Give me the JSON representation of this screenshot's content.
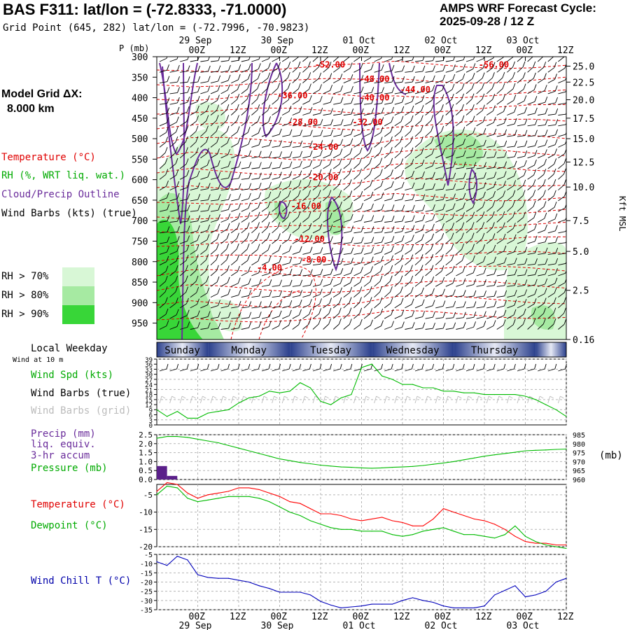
{
  "header": {
    "title": "BAS F311:  lat/lon = (-72.8333, -71.0000)",
    "subtitle": "Grid Point (645, 282) lat/lon = (-72.7996, -70.9823)",
    "cycle_line1": "AMPS WRF Forecast Cycle:",
    "cycle_line2": "2025-09-28 / 12  Z"
  },
  "grid": {
    "line1": "Model Grid ΔX:",
    "line2": "8.000 km"
  },
  "legend": {
    "temperature": "Temperature (°C)",
    "rh": "RH (%, WRT liq. wat.)",
    "cloud": "Cloud/Precip Outline",
    "barbs": "Wind Barbs (kts) (true)",
    "rh_levels": [
      {
        "label": "RH > 70%",
        "color": "#d8f7d6"
      },
      {
        "label": "RH > 80%",
        "color": "#a6eaa2"
      },
      {
        "label": "RH > 90%",
        "color": "#38d638"
      }
    ]
  },
  "colors": {
    "temperature": "#ff0000",
    "rh": "#00bb00",
    "cloud": "#6a2c9b",
    "precip": "#5a1f8a",
    "windchill": "#0000bb",
    "dewpoint": "#00bb00",
    "wind": "#00bb00"
  },
  "time_axis": {
    "ticks": [
      "00Z",
      "12Z",
      "00Z",
      "12Z",
      "00Z",
      "12Z",
      "00Z",
      "12Z",
      "00Z",
      "12Z"
    ],
    "tick_hours": [
      12,
      24,
      36,
      48,
      60,
      72,
      84,
      96,
      108,
      120
    ],
    "dates": [
      "29 Sep",
      "30 Sep",
      "01 Oct",
      "02 Oct",
      "03 Oct"
    ],
    "date_hours": [
      12,
      36,
      60,
      84,
      108
    ]
  },
  "weekday": {
    "label": "Local Weekday",
    "days": [
      "Sunday",
      "Monday",
      "Tuesday",
      "Wednesday",
      "Thursday"
    ]
  },
  "left_labels": {
    "wind_at_10m": "Wind at 10 m",
    "wind_spd": "Wind Spd (kts)",
    "barbs_true": "Wind Barbs (true)",
    "barbs_grid": "Wind Barbs (grid)",
    "precip1": "Precip (mm)",
    "precip2": "liq. equiv.",
    "precip3": "3-hr accum",
    "pressure": "Pressure (mb)",
    "temperature": "Temperature (°C)",
    "dewpoint": "Dewpoint (°C)",
    "windchill": "Wind Chill T (°C)",
    "pressure_units": "(mb)"
  },
  "chart_data": [
    {
      "type": "contour",
      "title": "Time-height cross section",
      "ylabel": "P (mb)",
      "y2label": "Kft MSL",
      "pressure_ticks": [
        300,
        350,
        400,
        450,
        500,
        550,
        600,
        650,
        700,
        750,
        800,
        850,
        900,
        950
      ],
      "height_ticks": [
        "25.0",
        "22.5",
        "20.0",
        "17.5",
        "15.0",
        "12.5",
        "10.0",
        "7.5",
        "5.0",
        "2.5",
        "0.16"
      ],
      "height_tick_p": [
        323,
        362,
        405,
        450,
        500,
        557,
        618,
        700,
        775,
        870,
        990
      ],
      "ylim": [
        300,
        990
      ],
      "temperature_contour_labels": [
        {
          "label": "-52.00",
          "hour": 50,
          "p": 320
        },
        {
          "label": "-56.00",
          "hour": 98,
          "p": 320
        },
        {
          "label": "-48.00",
          "hour": 63,
          "p": 355
        },
        {
          "label": "-44.00",
          "hour": 75,
          "p": 380
        },
        {
          "label": "-40.00",
          "hour": 63,
          "p": 400
        },
        {
          "label": "-36.00",
          "hour": 39,
          "p": 395
        },
        {
          "label": "-32.00",
          "hour": 61,
          "p": 460
        },
        {
          "label": "-28.00",
          "hour": 42,
          "p": 460
        },
        {
          "label": "-24.00",
          "hour": 48,
          "p": 520
        },
        {
          "label": "-20.00",
          "hour": 48,
          "p": 595
        },
        {
          "label": "-16.00",
          "hour": 43,
          "p": 665
        },
        {
          "label": "-12.00",
          "hour": 44,
          "p": 745
        },
        {
          "label": "-8.00",
          "hour": 46,
          "p": 795
        },
        {
          "label": "-4.00",
          "hour": 33,
          "p": 815
        }
      ]
    },
    {
      "type": "line",
      "title": "10 m wind speed",
      "ylabel": "Wind Spd (kts)",
      "yticks": [
        0,
        3,
        6,
        9,
        12,
        15,
        18,
        21,
        24,
        27,
        30,
        33,
        36,
        39
      ],
      "ylim": [
        0,
        39
      ],
      "x_hours": [
        0,
        3,
        6,
        9,
        12,
        15,
        18,
        21,
        24,
        27,
        30,
        33,
        36,
        39,
        42,
        45,
        48,
        51,
        54,
        57,
        60,
        63,
        66,
        69,
        72,
        75,
        78,
        81,
        84,
        87,
        90,
        93,
        96,
        99,
        102,
        105,
        108,
        111,
        114,
        117,
        120
      ],
      "series": [
        {
          "name": "Wind Spd",
          "values": [
            9,
            5,
            8,
            4,
            4,
            7,
            8,
            9,
            13,
            16,
            17,
            20,
            19,
            20,
            25,
            22,
            14,
            12,
            16,
            18,
            34,
            36,
            29,
            27,
            24,
            24,
            22,
            22,
            20,
            20,
            19,
            19,
            18,
            18,
            18,
            18,
            17,
            15,
            12,
            9,
            5
          ]
        }
      ]
    },
    {
      "type": "bar+line",
      "title": "Precipitation and pressure",
      "ylabel": "Precip (mm)",
      "y2label": "Pressure (mb)",
      "yticks": [
        0.0,
        0.5,
        1.0,
        1.5,
        2.0,
        2.5
      ],
      "ylim": [
        0,
        2.5
      ],
      "y2ticks": [
        960,
        965,
        970,
        975,
        980,
        985
      ],
      "y2lim": [
        960,
        985
      ],
      "precip_hours": [
        0,
        3
      ],
      "precip_values": [
        0.75,
        0.2
      ],
      "x_hours": [
        0,
        3,
        6,
        9,
        12,
        15,
        18,
        21,
        24,
        27,
        30,
        33,
        36,
        39,
        42,
        45,
        48,
        51,
        54,
        57,
        60,
        63,
        66,
        69,
        72,
        75,
        78,
        81,
        84,
        87,
        90,
        93,
        96,
        99,
        102,
        105,
        108,
        111,
        114,
        117,
        120
      ],
      "series": [
        {
          "name": "Pressure",
          "values": [
            983,
            984,
            984,
            983.5,
            982.5,
            981.5,
            980.5,
            979,
            977.5,
            976,
            974.5,
            973,
            971.5,
            970.5,
            969.5,
            968.8,
            968,
            967.5,
            967,
            966.8,
            966.5,
            966.3,
            966.5,
            966.8,
            967,
            967.3,
            967.8,
            968.5,
            969.2,
            970,
            971,
            972,
            973,
            973.8,
            974.5,
            975.2,
            976,
            976.3,
            976.5,
            976.8,
            977
          ]
        }
      ]
    },
    {
      "type": "line",
      "title": "Temperature and dewpoint",
      "ylabel": "Temperature (°C)",
      "yticks": [
        -20,
        -15,
        -10,
        -5
      ],
      "ylim": [
        -20,
        -2
      ],
      "x_hours": [
        0,
        3,
        6,
        9,
        12,
        15,
        18,
        21,
        24,
        27,
        30,
        33,
        36,
        39,
        42,
        45,
        48,
        51,
        54,
        57,
        60,
        63,
        66,
        69,
        72,
        75,
        78,
        81,
        84,
        87,
        90,
        93,
        96,
        99,
        102,
        105,
        108,
        111,
        114,
        117,
        120
      ],
      "series": [
        {
          "name": "Temperature",
          "values": [
            -4,
            -1.5,
            -2,
            -4.5,
            -6,
            -5,
            -4.5,
            -4,
            -3,
            -3,
            -3.5,
            -4.5,
            -5.5,
            -7,
            -7.5,
            -9,
            -10.5,
            -10.5,
            -11,
            -12,
            -12.5,
            -12,
            -11.5,
            -12.5,
            -13,
            -14,
            -14,
            -12,
            -9,
            -10,
            -11,
            -12,
            -12.5,
            -13.5,
            -15,
            -17,
            -18.5,
            -19,
            -19,
            -19.5,
            -19.5
          ]
        },
        {
          "name": "Dewpoint",
          "values": [
            -5,
            -2.5,
            -3,
            -6,
            -7,
            -6.5,
            -6,
            -5.5,
            -5.5,
            -5.5,
            -6,
            -7,
            -8.5,
            -10,
            -11,
            -12.5,
            -13.5,
            -14.5,
            -15,
            -15,
            -15.5,
            -15.5,
            -15.5,
            -16.5,
            -17,
            -16.5,
            -15.5,
            -15,
            -14.5,
            -15.5,
            -16.5,
            -16.5,
            -17,
            -17.5,
            -16.5,
            -14,
            -17,
            -18.5,
            -19.5,
            -20,
            -20.5
          ]
        }
      ]
    },
    {
      "type": "line",
      "title": "Wind chill temperature",
      "ylabel": "Wind Chill T (°C)",
      "yticks": [
        -35,
        -30,
        -25,
        -20,
        -15,
        -10,
        -5
      ],
      "ylim": [
        -35,
        -5
      ],
      "x_hours": [
        0,
        3,
        6,
        9,
        12,
        15,
        18,
        21,
        24,
        27,
        30,
        33,
        36,
        39,
        42,
        45,
        48,
        51,
        54,
        57,
        60,
        63,
        66,
        69,
        72,
        75,
        78,
        81,
        84,
        87,
        90,
        93,
        96,
        99,
        102,
        105,
        108,
        111,
        114,
        117,
        120
      ],
      "series": [
        {
          "name": "Wind Chill",
          "values": [
            -9,
            -11,
            -6,
            -8,
            -16,
            -17.5,
            -18,
            -18,
            -19,
            -20,
            -22,
            -23.5,
            -25.5,
            -25.5,
            -25.5,
            -27,
            -30.5,
            -32.5,
            -34,
            -33.5,
            -33,
            -32,
            -32,
            -32,
            -30,
            -28.5,
            -30,
            -31,
            -33,
            -34,
            -34,
            -34,
            -33,
            -27,
            -24.5,
            -22,
            -28,
            -27,
            -25,
            -20,
            -18
          ]
        }
      ]
    }
  ]
}
